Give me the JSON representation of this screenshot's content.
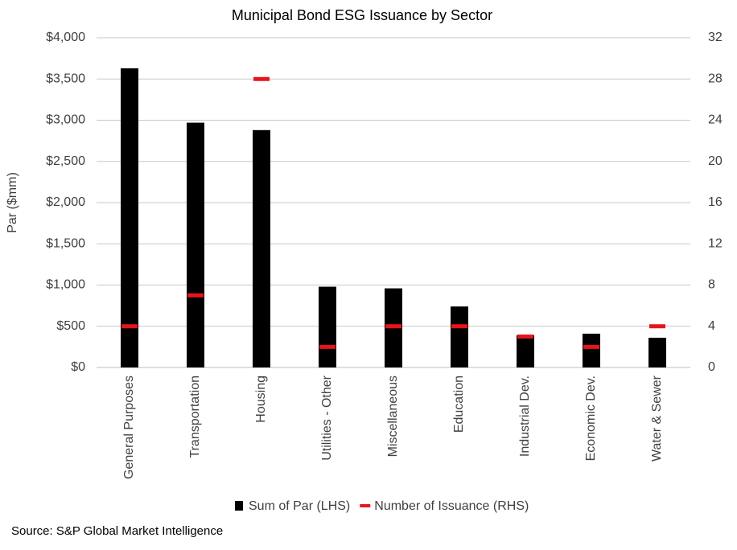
{
  "chart_data": {
    "type": "combo",
    "title": "Municipal Bond ESG Issuance by Sector",
    "ylabel": "Par ($mm)",
    "categories": [
      "General Purposes",
      "Transportation",
      "Housing",
      "Utilities - Other",
      "Miscellaneous",
      "Education",
      "Industrial Dev.",
      "Economic Dev.",
      "Water & Sewer"
    ],
    "series": [
      {
        "name": "Sum of Par (LHS)",
        "type": "bar",
        "color": "#000000",
        "values": [
          3630,
          2970,
          2880,
          980,
          960,
          740,
          390,
          410,
          360
        ]
      },
      {
        "name": "Number of Issuance (RHS)",
        "type": "dash",
        "color": "#e8141c",
        "axis": "y2",
        "values": [
          4,
          7,
          28,
          2,
          4,
          4,
          3,
          2,
          4
        ]
      }
    ],
    "ylim": [
      0,
      4000
    ],
    "yticks": [
      {
        "value": 0,
        "label": "$0"
      },
      {
        "value": 500,
        "label": "$500"
      },
      {
        "value": 1000,
        "label": "$1,000"
      },
      {
        "value": 1500,
        "label": "$1,500"
      },
      {
        "value": 2000,
        "label": "$2,000"
      },
      {
        "value": 2500,
        "label": "$2,500"
      },
      {
        "value": 3000,
        "label": "$3,000"
      },
      {
        "value": 3500,
        "label": "$3,500"
      },
      {
        "value": 4000,
        "label": "$4,000"
      }
    ],
    "y2lim": [
      0,
      32
    ],
    "y2ticks": [
      0,
      4,
      8,
      12,
      16,
      20,
      24,
      28,
      32
    ],
    "grid": true,
    "legend": "bottom",
    "source": "Source: S&P Global Market Intelligence"
  }
}
